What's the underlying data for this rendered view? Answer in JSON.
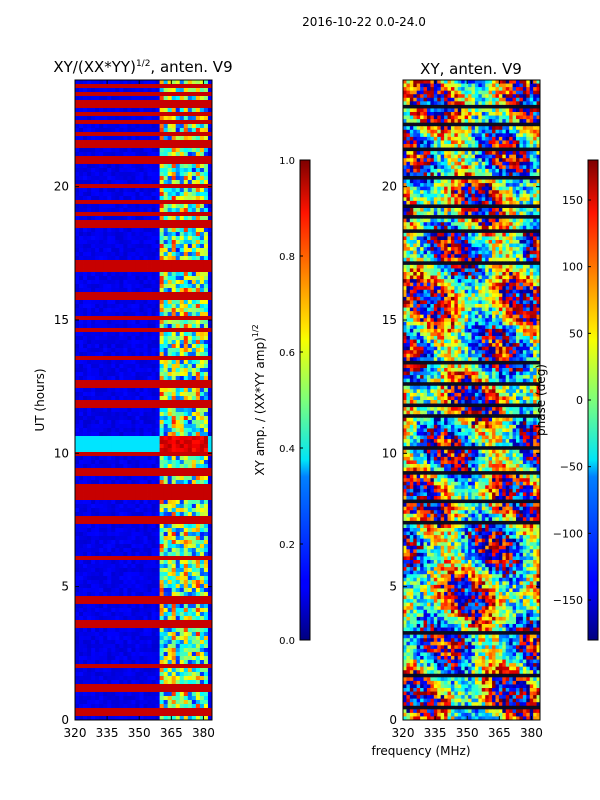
{
  "chart_data": {
    "suptitle": "2016-10-22 0.0-24.0",
    "xlabel": "frequency (MHz)",
    "panels": [
      {
        "type": "heatmap",
        "title_main": "XY/(XX*YY)",
        "title_exp": "1/2",
        "title_suffix": ", anten. V9",
        "ylabel": "UT (hours)",
        "xlim": [
          320,
          384
        ],
        "ylim": [
          0,
          24
        ],
        "xticks": [
          320,
          335,
          350,
          365,
          380
        ],
        "yticks": [
          0,
          5,
          10,
          15,
          20
        ],
        "colorbar": {
          "label_main": "XY amp. / (XX*YY amp)",
          "label_exp": "1/2",
          "range": [
            0.0,
            1.0
          ],
          "ticks": [
            "0.0",
            "0.2",
            "0.4",
            "0.6",
            "0.8",
            "1.0"
          ],
          "tick_values": [
            0.0,
            0.2,
            0.4,
            0.6,
            0.8,
            1.0
          ]
        }
      },
      {
        "type": "heatmap",
        "title": "XY, anten. V9",
        "xlim": [
          320,
          384
        ],
        "ylim": [
          0,
          24
        ],
        "xticks": [
          320,
          335,
          350,
          365,
          380
        ],
        "yticks": [
          0,
          5,
          10,
          15,
          20
        ],
        "colorbar": {
          "label": "phase (deg)",
          "range": [
            -180,
            180
          ],
          "ticks": [
            "150",
            "100",
            "50",
            "0",
            "−50",
            "−100",
            "−150"
          ],
          "tick_values": [
            150,
            100,
            50,
            0,
            -50,
            -100,
            -150
          ]
        }
      }
    ]
  }
}
